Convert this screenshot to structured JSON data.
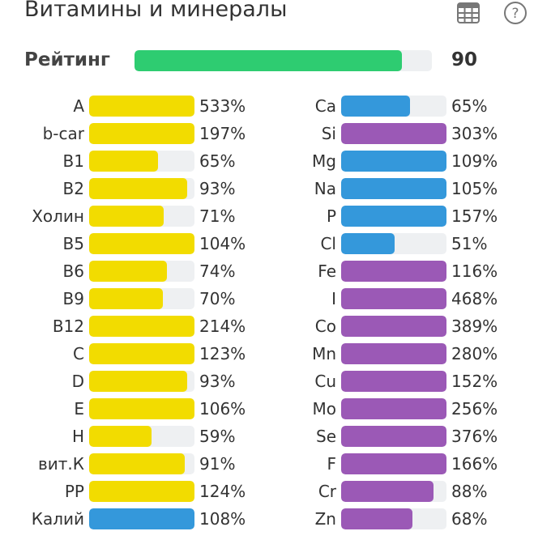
{
  "header": {
    "title": "Витамины и минералы",
    "table_icon": "table-icon",
    "help_icon": "help-circle-icon"
  },
  "rating": {
    "label": "Рейтинг",
    "value": "90",
    "fraction": 0.9,
    "color": "#2ecc71"
  },
  "colors": {
    "vitamin": "#f2dc00",
    "blue": "#3498db",
    "purple": "#9b59b6"
  },
  "left": [
    {
      "label": "A",
      "value": "533%",
      "pct": 533,
      "color": "vitamin"
    },
    {
      "label": "b-car",
      "value": "197%",
      "pct": 197,
      "color": "vitamin"
    },
    {
      "label": "B1",
      "value": "65%",
      "pct": 65,
      "color": "vitamin"
    },
    {
      "label": "B2",
      "value": "93%",
      "pct": 93,
      "color": "vitamin"
    },
    {
      "label": "Холин",
      "value": "71%",
      "pct": 71,
      "color": "vitamin"
    },
    {
      "label": "B5",
      "value": "104%",
      "pct": 104,
      "color": "vitamin"
    },
    {
      "label": "B6",
      "value": "74%",
      "pct": 74,
      "color": "vitamin"
    },
    {
      "label": "B9",
      "value": "70%",
      "pct": 70,
      "color": "vitamin"
    },
    {
      "label": "B12",
      "value": "214%",
      "pct": 214,
      "color": "vitamin"
    },
    {
      "label": "C",
      "value": "123%",
      "pct": 123,
      "color": "vitamin"
    },
    {
      "label": "D",
      "value": "93%",
      "pct": 93,
      "color": "vitamin"
    },
    {
      "label": "E",
      "value": "106%",
      "pct": 106,
      "color": "vitamin"
    },
    {
      "label": "H",
      "value": "59%",
      "pct": 59,
      "color": "vitamin"
    },
    {
      "label": "вит.К",
      "value": "91%",
      "pct": 91,
      "color": "vitamin"
    },
    {
      "label": "PP",
      "value": "124%",
      "pct": 124,
      "color": "vitamin"
    },
    {
      "label": "Калий",
      "value": "108%",
      "pct": 108,
      "color": "blue"
    }
  ],
  "right": [
    {
      "label": "Ca",
      "value": "65%",
      "pct": 65,
      "color": "blue"
    },
    {
      "label": "Si",
      "value": "303%",
      "pct": 303,
      "color": "purple"
    },
    {
      "label": "Mg",
      "value": "109%",
      "pct": 109,
      "color": "blue"
    },
    {
      "label": "Na",
      "value": "105%",
      "pct": 105,
      "color": "blue"
    },
    {
      "label": "P",
      "value": "157%",
      "pct": 157,
      "color": "blue"
    },
    {
      "label": "Cl",
      "value": "51%",
      "pct": 51,
      "color": "blue"
    },
    {
      "label": "Fe",
      "value": "116%",
      "pct": 116,
      "color": "purple"
    },
    {
      "label": "I",
      "value": "468%",
      "pct": 468,
      "color": "purple"
    },
    {
      "label": "Co",
      "value": "389%",
      "pct": 389,
      "color": "purple"
    },
    {
      "label": "Mn",
      "value": "280%",
      "pct": 280,
      "color": "purple"
    },
    {
      "label": "Cu",
      "value": "152%",
      "pct": 152,
      "color": "purple"
    },
    {
      "label": "Mo",
      "value": "256%",
      "pct": 256,
      "color": "purple"
    },
    {
      "label": "Se",
      "value": "376%",
      "pct": 376,
      "color": "purple"
    },
    {
      "label": "F",
      "value": "166%",
      "pct": 166,
      "color": "purple"
    },
    {
      "label": "Cr",
      "value": "88%",
      "pct": 88,
      "color": "purple"
    },
    {
      "label": "Zn",
      "value": "68%",
      "pct": 68,
      "color": "purple"
    }
  ]
}
